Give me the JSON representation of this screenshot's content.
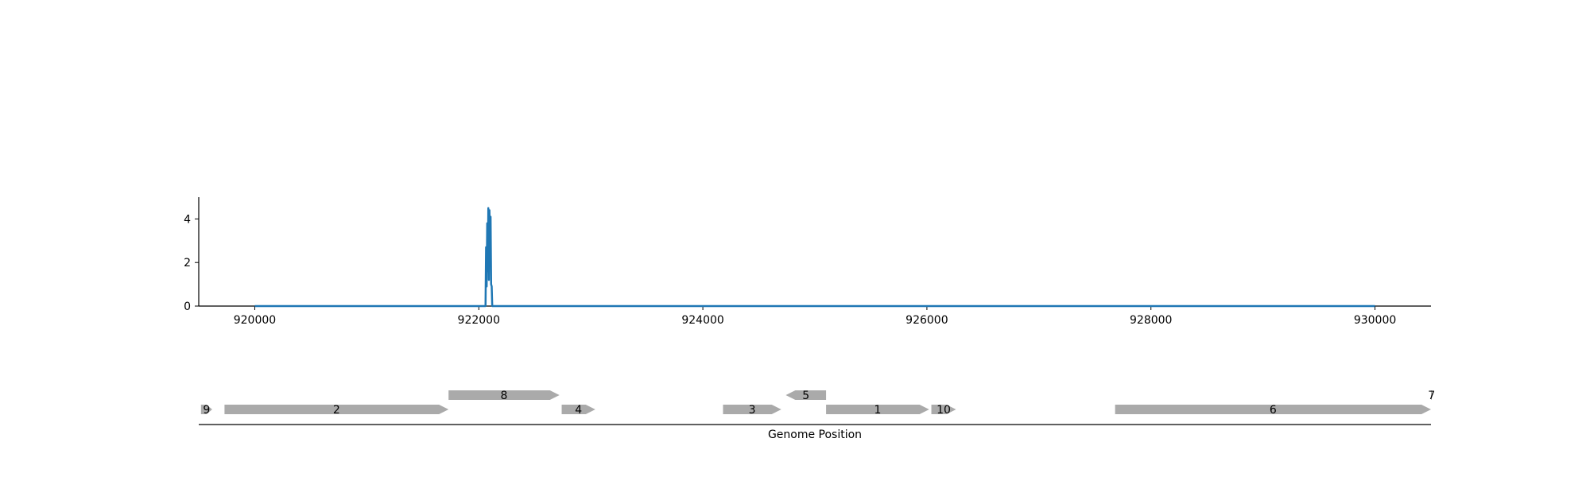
{
  "chart_data": [
    {
      "type": "line",
      "x_ticks": [
        920000,
        922000,
        924000,
        926000,
        928000,
        930000
      ],
      "y_ticks": [
        0,
        2,
        4
      ],
      "xlim": [
        919500,
        930500
      ],
      "ylim": [
        0,
        5.0
      ],
      "grid": false,
      "series": [
        {
          "color": "#1f77b4",
          "x": [
            920000,
            922000,
            922060,
            922065,
            922070,
            922075,
            922080,
            922085,
            922090,
            922095,
            922100,
            922105,
            922110,
            922115,
            922120,
            922200,
            930000
          ],
          "y": [
            0,
            0,
            0,
            2.7,
            0.9,
            3.8,
            1.6,
            4.5,
            1.2,
            4.4,
            3.1,
            4.1,
            1.0,
            0.9,
            0,
            0,
            0
          ]
        }
      ]
    },
    {
      "type": "gene-track",
      "xlabel": "Genome Position",
      "xlim": [
        919500,
        930500
      ],
      "gene_color": "#aaaaaa",
      "genes": [
        {
          "label": "9",
          "start": 919520,
          "end": 919620,
          "strand": "+",
          "row": 0
        },
        {
          "label": "2",
          "start": 919730,
          "end": 921730,
          "strand": "+",
          "row": 0
        },
        {
          "label": "8",
          "start": 921730,
          "end": 922720,
          "strand": "+",
          "row": 1
        },
        {
          "label": "4",
          "start": 922740,
          "end": 923040,
          "strand": "+",
          "row": 0
        },
        {
          "label": "3",
          "start": 924180,
          "end": 924700,
          "strand": "+",
          "row": 0
        },
        {
          "label": "5",
          "start": 924740,
          "end": 925100,
          "strand": "-",
          "row": 1
        },
        {
          "label": "1",
          "start": 925100,
          "end": 926020,
          "strand": "+",
          "row": 0
        },
        {
          "label": "10",
          "start": 926040,
          "end": 926260,
          "strand": "+",
          "row": 0
        },
        {
          "label": "6",
          "start": 927680,
          "end": 930500,
          "strand": "+",
          "row": 0
        },
        {
          "label": "7",
          "start": 930500,
          "end": 930510,
          "strand": "+",
          "row": 1
        }
      ]
    }
  ]
}
